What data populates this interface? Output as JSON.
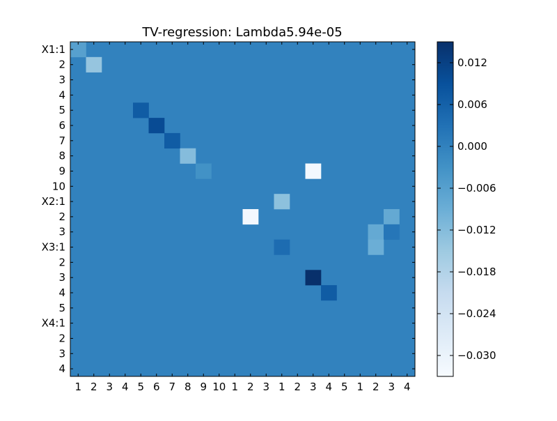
{
  "chart_data": {
    "type": "heatmap",
    "title": "TV-regression: Lambda5.94e-05",
    "row_labels": [
      "X1:1",
      "2",
      "3",
      "4",
      "5",
      "6",
      "7",
      "8",
      "9",
      "10",
      "X2:1",
      "2",
      "3",
      "X3:1",
      "2",
      "3",
      "4",
      "5",
      "X4:1",
      "2",
      "3",
      "4"
    ],
    "col_labels": [
      "1",
      "2",
      "3",
      "4",
      "5",
      "6",
      "7",
      "8",
      "9",
      "10",
      "1",
      "2",
      "3",
      "1",
      "2",
      "3",
      "4",
      "5",
      "1",
      "2",
      "3",
      "4"
    ],
    "background_value": 0.0,
    "cells": [
      {
        "row": 0,
        "col": 0,
        "value": -0.006
      },
      {
        "row": 1,
        "col": 1,
        "value": -0.014
      },
      {
        "row": 4,
        "col": 4,
        "value": 0.007
      },
      {
        "row": 5,
        "col": 5,
        "value": 0.01
      },
      {
        "row": 6,
        "col": 6,
        "value": 0.007
      },
      {
        "row": 7,
        "col": 7,
        "value": -0.012
      },
      {
        "row": 8,
        "col": 8,
        "value": -0.003
      },
      {
        "row": 8,
        "col": 15,
        "value": -0.032
      },
      {
        "row": 10,
        "col": 13,
        "value": -0.013
      },
      {
        "row": 11,
        "col": 11,
        "value": -0.032
      },
      {
        "row": 11,
        "col": 20,
        "value": -0.008
      },
      {
        "row": 12,
        "col": 19,
        "value": -0.008
      },
      {
        "row": 12,
        "col": 20,
        "value": 0.002
      },
      {
        "row": 13,
        "col": 13,
        "value": 0.004
      },
      {
        "row": 13,
        "col": 19,
        "value": -0.009
      },
      {
        "row": 15,
        "col": 15,
        "value": 0.015
      },
      {
        "row": 16,
        "col": 16,
        "value": 0.007
      }
    ],
    "colorbar": {
      "vmin": -0.033,
      "vmax": 0.015,
      "ticks": [
        0.012,
        0.006,
        0.0,
        -0.006,
        -0.012,
        -0.018,
        -0.024,
        -0.03
      ],
      "tick_labels": [
        "0.012",
        "0.006",
        "0.000",
        "−0.006",
        "−0.012",
        "−0.018",
        "−0.024",
        "−0.030"
      ]
    },
    "colormap": "Blues",
    "colormap_stops": [
      "#f7fbff",
      "#deebf7",
      "#c6dbef",
      "#9ecae1",
      "#6baed6",
      "#4292c6",
      "#2171b5",
      "#08519c",
      "#08306b"
    ]
  }
}
